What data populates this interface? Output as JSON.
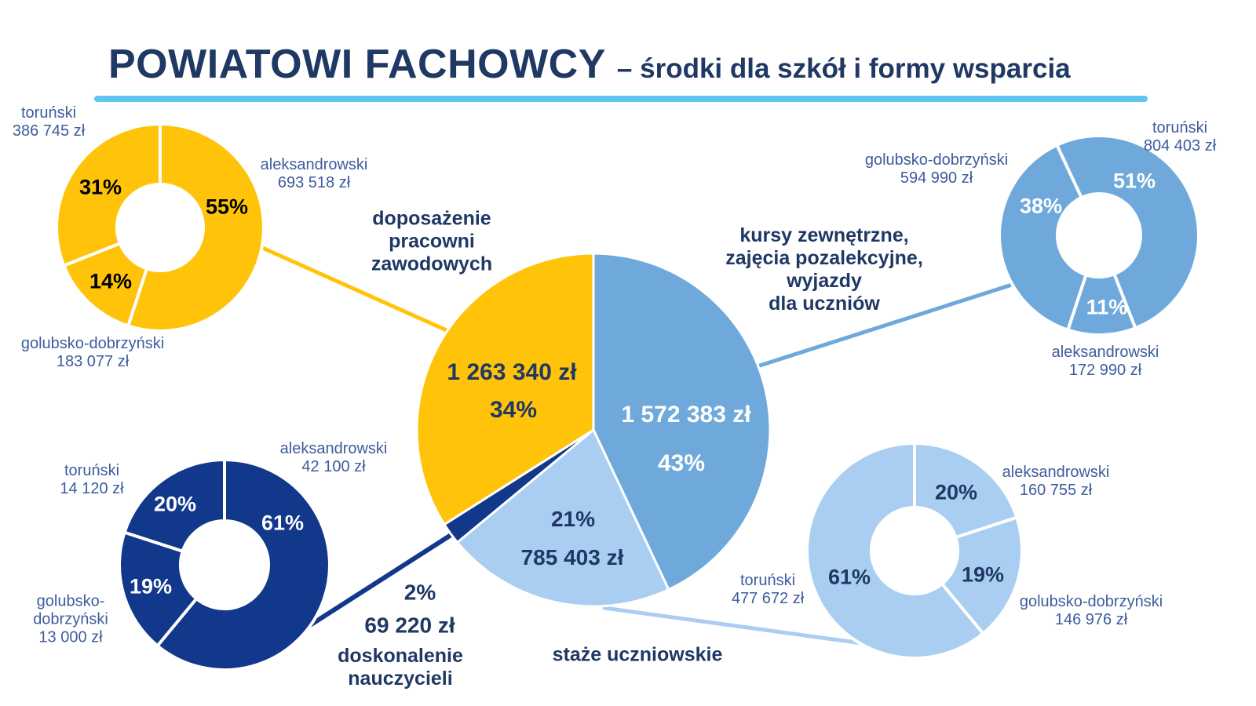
{
  "title": {
    "main": "POWIATOWI FACHOWCY",
    "subtitle": "– środki dla szkół i formy wsparcia"
  },
  "palette": {
    "yellow": "#FFC40A",
    "medium_blue": "#6FA9DC",
    "light_blue": "#A9CEF1",
    "navy": "#12388C",
    "heading": "#1F3864",
    "label": "#3D5C9D",
    "underline": "#5FC6EE",
    "black": "#000000",
    "white": "#FFFFFF"
  },
  "headings": {
    "doposazenie": "doposażenie\npracowni\nzawodowych",
    "kursy": "kursy zewnętrzne,\nzajęcia pozalekcyjne,\nwyjazdy\ndla uczniów",
    "doskonalenie": "doskonalenie\nnauczycieli",
    "staze": "staże uczniowskie"
  },
  "chart_data": [
    {
      "key": "main",
      "type": "pie",
      "title": "środki dla szkół i formy wsparcia",
      "unit": "zł",
      "slices": [
        {
          "category": "kursy zewnętrzne, zajęcia pozalekcyjne, wyjazdy dla uczniów",
          "value": 1572383,
          "amount": "1 572 383 zł",
          "percent": 43,
          "percent_label": "43%",
          "color": "medium_blue"
        },
        {
          "category": "staże uczniowskie",
          "value": 785403,
          "amount": "785 403 zł",
          "percent": 21,
          "percent_label": "21%",
          "color": "light_blue"
        },
        {
          "category": "doskonalenie nauczycieli",
          "value": 69220,
          "amount": "69 220 zł",
          "percent": 2,
          "percent_label": "2%",
          "color": "navy"
        },
        {
          "category": "doposażenie pracowni zawodowych",
          "value": 1263340,
          "amount": "1 263 340 zł",
          "percent": 34,
          "percent_label": "34%",
          "color": "yellow"
        }
      ]
    },
    {
      "key": "doposazenie",
      "type": "donut",
      "title": "doposażenie pracowni zawodowych",
      "unit": "zł",
      "slices": [
        {
          "category": "aleksandrowski",
          "value": 693518,
          "amount": "693 518 zł",
          "percent": 55,
          "percent_label": "55%",
          "color": "yellow"
        },
        {
          "category": "golubsko-dobrzyński",
          "value": 183077,
          "amount": "183 077 zł",
          "percent": 14,
          "percent_label": "14%",
          "color": "yellow"
        },
        {
          "category": "toruński",
          "value": 386745,
          "amount": "386 745 zł",
          "percent": 31,
          "percent_label": "31%",
          "color": "yellow"
        }
      ]
    },
    {
      "key": "kursy",
      "type": "donut",
      "title": "kursy zewnętrzne, zajęcia pozalekcyjne, wyjazdy dla uczniów",
      "unit": "zł",
      "slices": [
        {
          "category": "toruński",
          "value": 804403,
          "amount": "804 403 zł",
          "percent": 51,
          "percent_label": "51%",
          "color": "medium_blue"
        },
        {
          "category": "aleksandrowski",
          "value": 172990,
          "amount": "172 990 zł",
          "percent": 11,
          "percent_label": "11%",
          "color": "medium_blue"
        },
        {
          "category": "golubsko-dobrzyński",
          "value": 594990,
          "amount": "594 990 zł",
          "percent": 38,
          "percent_label": "38%",
          "color": "medium_blue"
        }
      ]
    },
    {
      "key": "doskonalenie",
      "type": "donut",
      "title": "doskonalenie nauczycieli",
      "unit": "zł",
      "slices": [
        {
          "category": "aleksandrowski",
          "value": 42100,
          "amount": "42 100 zł",
          "percent": 61,
          "percent_label": "61%",
          "color": "navy"
        },
        {
          "category": "golubsko-dobrzyński",
          "value": 13000,
          "amount": "13 000 zł",
          "percent": 19,
          "percent_label": "19%",
          "color": "navy"
        },
        {
          "category": "toruński",
          "value": 14120,
          "amount": "14 120 zł",
          "percent": 20,
          "percent_label": "20%",
          "color": "navy"
        }
      ]
    },
    {
      "key": "staze",
      "type": "donut",
      "title": "staże uczniowskie",
      "unit": "zł",
      "slices": [
        {
          "category": "aleksandrowski",
          "value": 160755,
          "amount": "160 755 zł",
          "percent": 20,
          "percent_label": "20%",
          "color": "light_blue"
        },
        {
          "category": "golubsko-dobrzyński",
          "value": 146976,
          "amount": "146 976 zł",
          "percent": 19,
          "percent_label": "19%",
          "color": "light_blue"
        },
        {
          "category": "toruński",
          "value": 477672,
          "amount": "477 672 zł",
          "percent": 61,
          "percent_label": "61%",
          "color": "light_blue"
        }
      ]
    }
  ]
}
